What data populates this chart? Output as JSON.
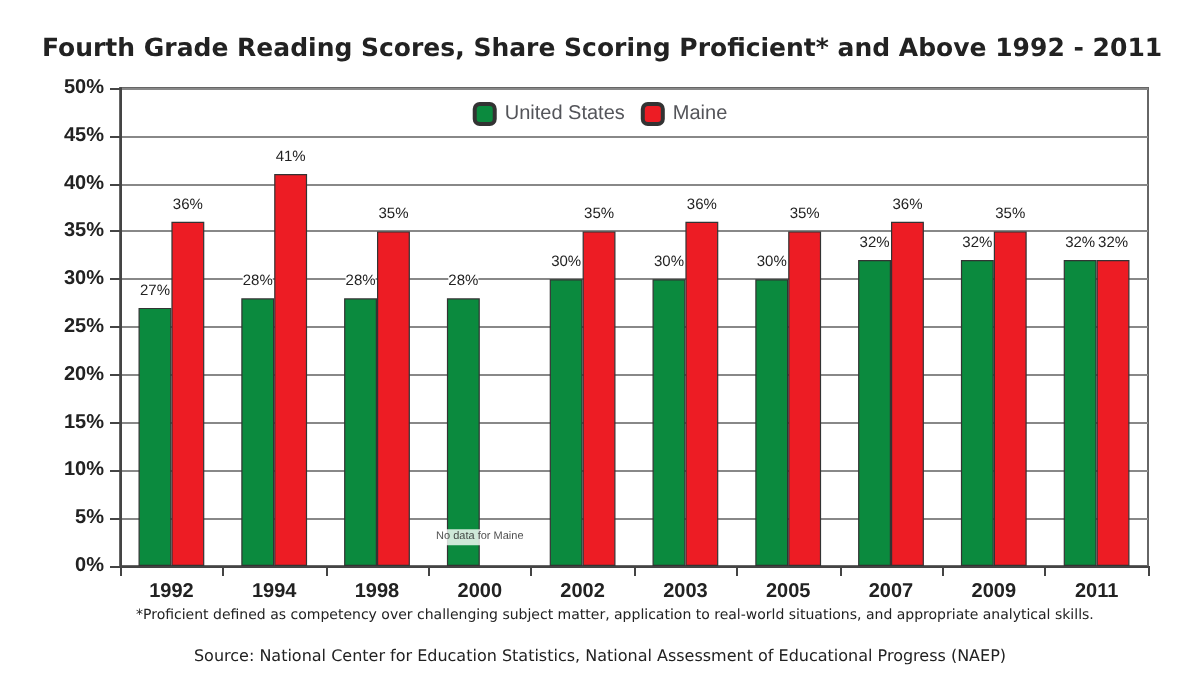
{
  "chart_data": {
    "type": "bar",
    "title": "Fourth Grade Reading Scores, Share Scoring Proficient* and Above 1992 - 2011",
    "categories": [
      "1992",
      "1994",
      "1998",
      "2000",
      "2002",
      "2003",
      "2005",
      "2007",
      "2009",
      "2011"
    ],
    "series": [
      {
        "name": "United States",
        "color": "#0b8a3e",
        "values": [
          27,
          28,
          28,
          28,
          30,
          30,
          30,
          32,
          32,
          32
        ],
        "value_labels": [
          "27%",
          "28%",
          "28%",
          "28%",
          "30%",
          "30%",
          "30%",
          "32%",
          "32%",
          "32%"
        ]
      },
      {
        "name": "Maine",
        "color": "#ed1c24",
        "values": [
          36,
          41,
          35,
          null,
          35,
          36,
          35,
          36,
          35,
          32
        ],
        "value_labels": [
          "36%",
          "41%",
          "35%",
          null,
          "35%",
          "36%",
          "35%",
          "36%",
          "35%",
          "32%"
        ]
      }
    ],
    "ylim": [
      0,
      50
    ],
    "yticks": [
      {
        "value": 0,
        "label": "0%"
      },
      {
        "value": 5,
        "label": "5%"
      },
      {
        "value": 10,
        "label": "10%"
      },
      {
        "value": 15,
        "label": "15%"
      },
      {
        "value": 20,
        "label": "20%"
      },
      {
        "value": 25,
        "label": "25%"
      },
      {
        "value": 30,
        "label": "30%"
      },
      {
        "value": 35,
        "label": "35%"
      },
      {
        "value": 40,
        "label": "40%"
      },
      {
        "value": 45,
        "label": "45%"
      },
      {
        "value": 50,
        "label": "50%"
      }
    ],
    "grid": "y",
    "legend": "top",
    "annotations": [
      {
        "text": "No data for Maine",
        "x": "2000",
        "y": 3
      },
      "*Proficient defined as competency over challenging subject matter, application to real-world situations, and appropriate analytical skills.",
      "Source: National Center for Education Statistics, National Assessment of Educational Progress (NAEP)"
    ]
  }
}
